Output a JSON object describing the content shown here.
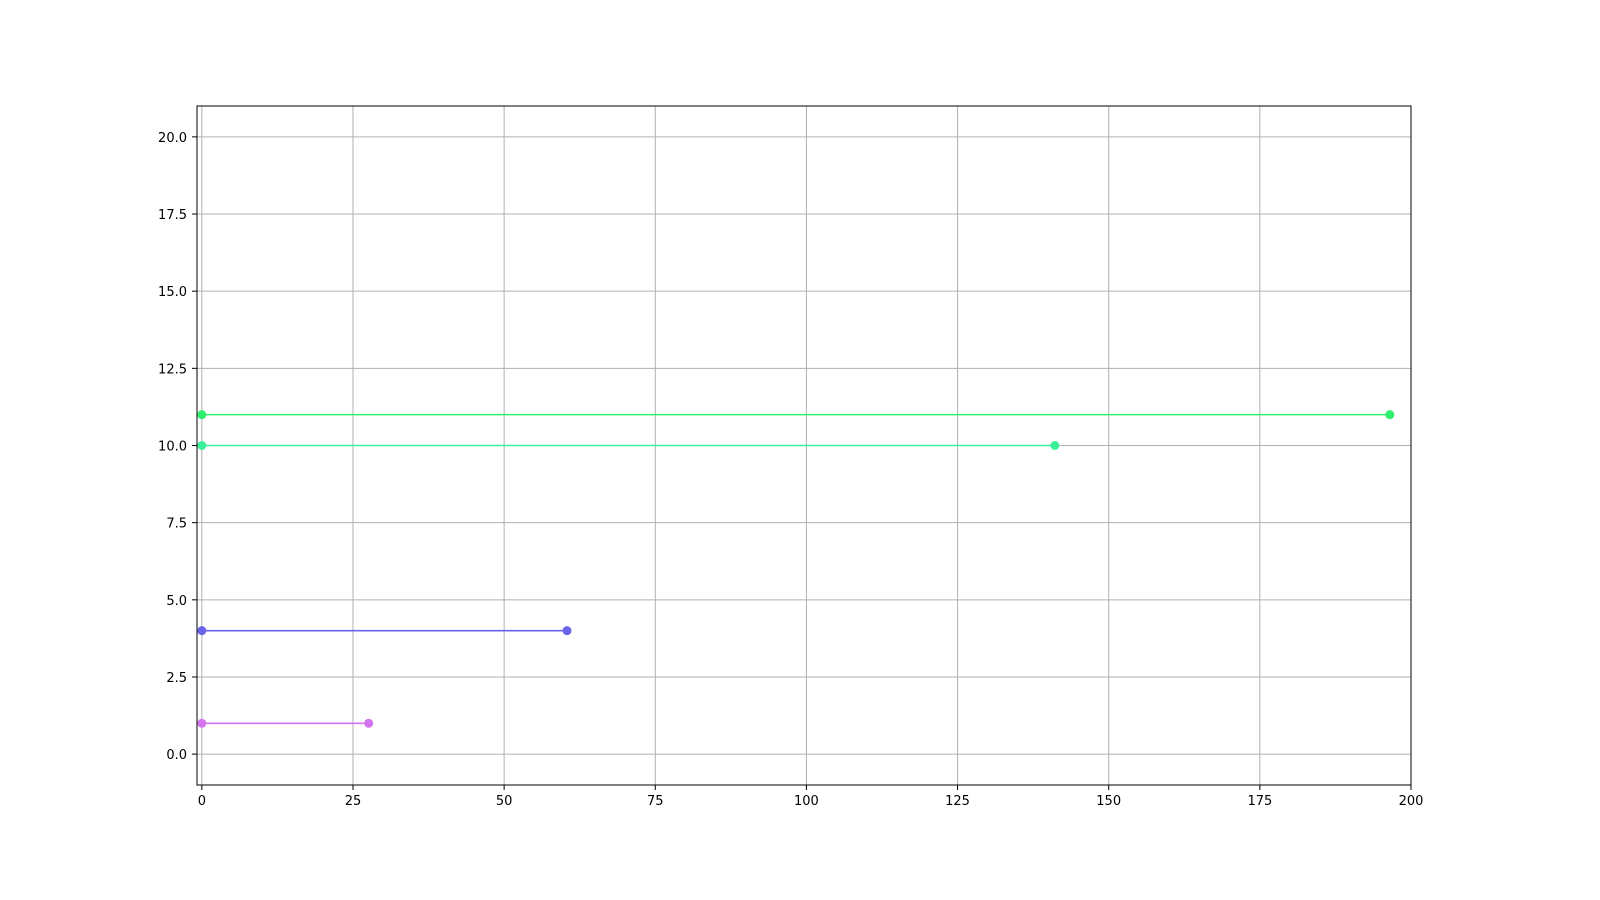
{
  "chart_data": {
    "type": "line",
    "title": "",
    "xlabel": "",
    "ylabel": "",
    "xlim": [
      -0.8,
      200
    ],
    "ylim": [
      -1,
      21
    ],
    "grid": true,
    "xticks": [
      "0",
      "25",
      "50",
      "75",
      "100",
      "125",
      "150",
      "175",
      "200"
    ],
    "yticks": [
      "0.0",
      "2.5",
      "5.0",
      "7.5",
      "10.0",
      "12.5",
      "15.0",
      "17.5",
      "20.0"
    ],
    "series": [
      {
        "color": "#2ef06c",
        "x": [
          0,
          196.5
        ],
        "y": [
          11,
          11
        ]
      },
      {
        "color": "#3cf09a",
        "x": [
          0,
          141.1
        ],
        "y": [
          10,
          10
        ]
      },
      {
        "color": "#6a64e8",
        "x": [
          0,
          60.4
        ],
        "y": [
          4,
          4
        ]
      },
      {
        "color": "#d474ee",
        "x": [
          0,
          27.6
        ],
        "y": [
          1,
          1
        ]
      }
    ]
  }
}
